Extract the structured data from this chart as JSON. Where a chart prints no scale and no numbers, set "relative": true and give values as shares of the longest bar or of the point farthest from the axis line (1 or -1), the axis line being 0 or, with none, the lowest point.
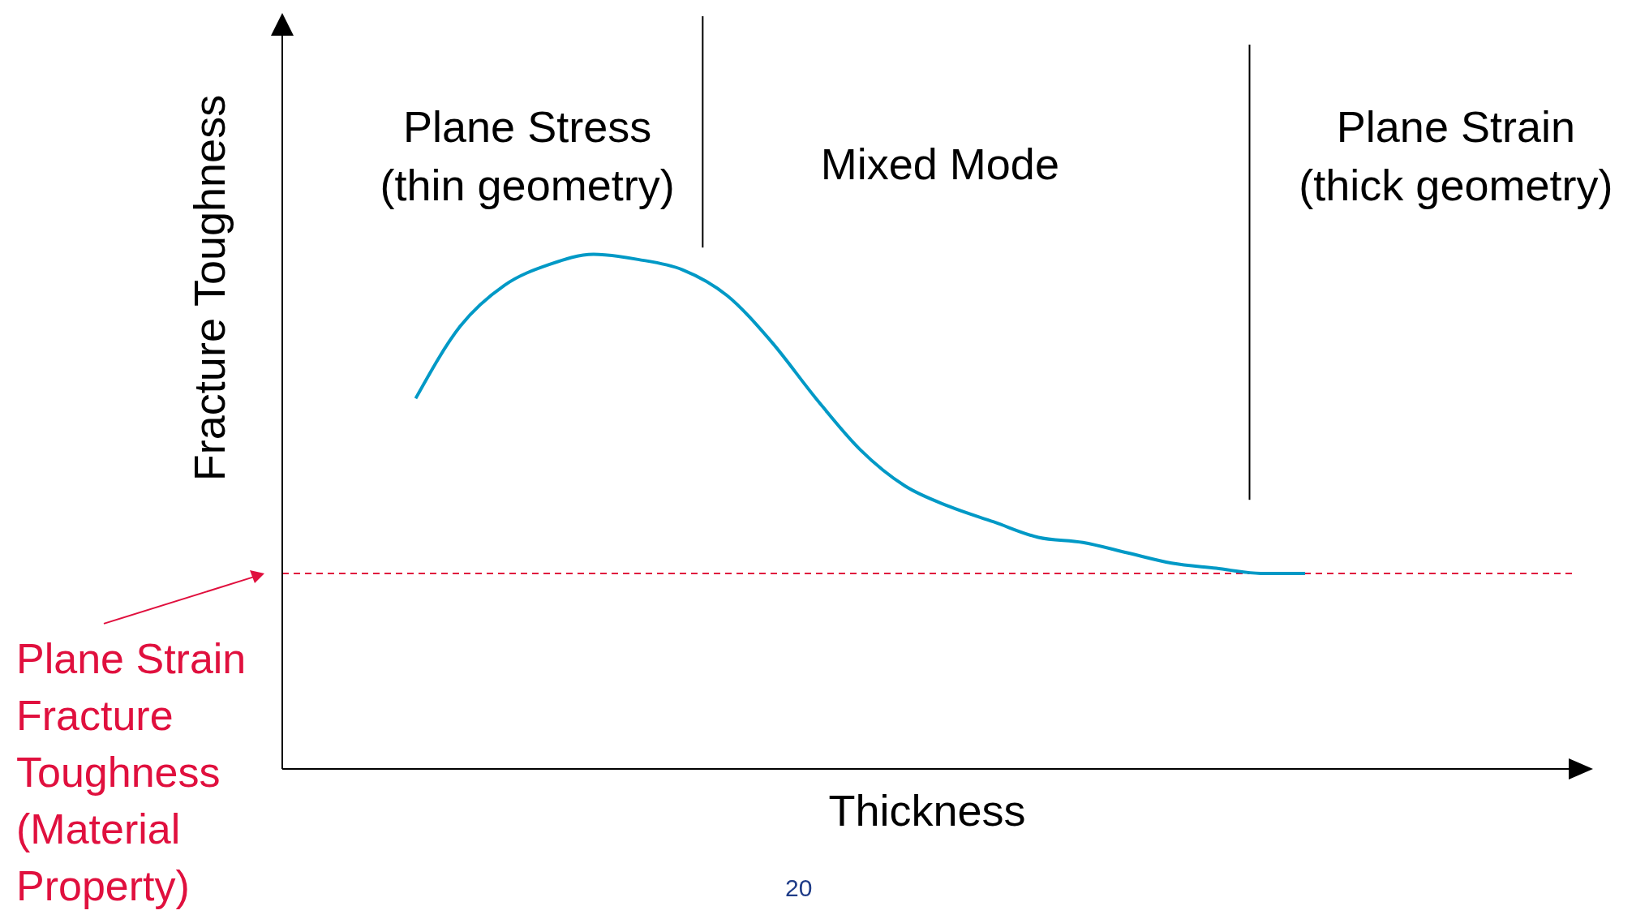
{
  "chart_data": {
    "type": "line",
    "relative": true,
    "xlabel": "Thickness",
    "ylabel": "Fracture Toughness",
    "categories": [
      null,
      null,
      null,
      null,
      null,
      null,
      null,
      null,
      null,
      null,
      null,
      null,
      null,
      null,
      null,
      null,
      null,
      null,
      null,
      null,
      null,
      null,
      null,
      null,
      null,
      null,
      null,
      null,
      null,
      null
    ],
    "series": [
      {
        "color": "#0099c6",
        "values": [
          null,
          null,
          null,
          0.72,
          0.86,
          0.94,
          0.98,
          1.0,
          0.99,
          0.97,
          0.92,
          0.83,
          0.72,
          0.62,
          0.55,
          0.51,
          0.48,
          0.45,
          0.44,
          0.42,
          0.4,
          0.39,
          0.38,
          0.38,
          null,
          null,
          null,
          null,
          null,
          null
        ]
      }
    ],
    "ref_lines": [
      {
        "axis": "y",
        "value": 0.38,
        "label": "Plane Strain Fracture Toughness (Material Property)",
        "color": "#e0103e",
        "line_style": "dashed"
      }
    ],
    "annotations": [
      "Plane Stress (thin geometry)",
      "Mixed Mode",
      "Plane Strain (thick geometry)",
      "20"
    ],
    "marker": "none",
    "line_style": "solid",
    "grid": false
  }
}
